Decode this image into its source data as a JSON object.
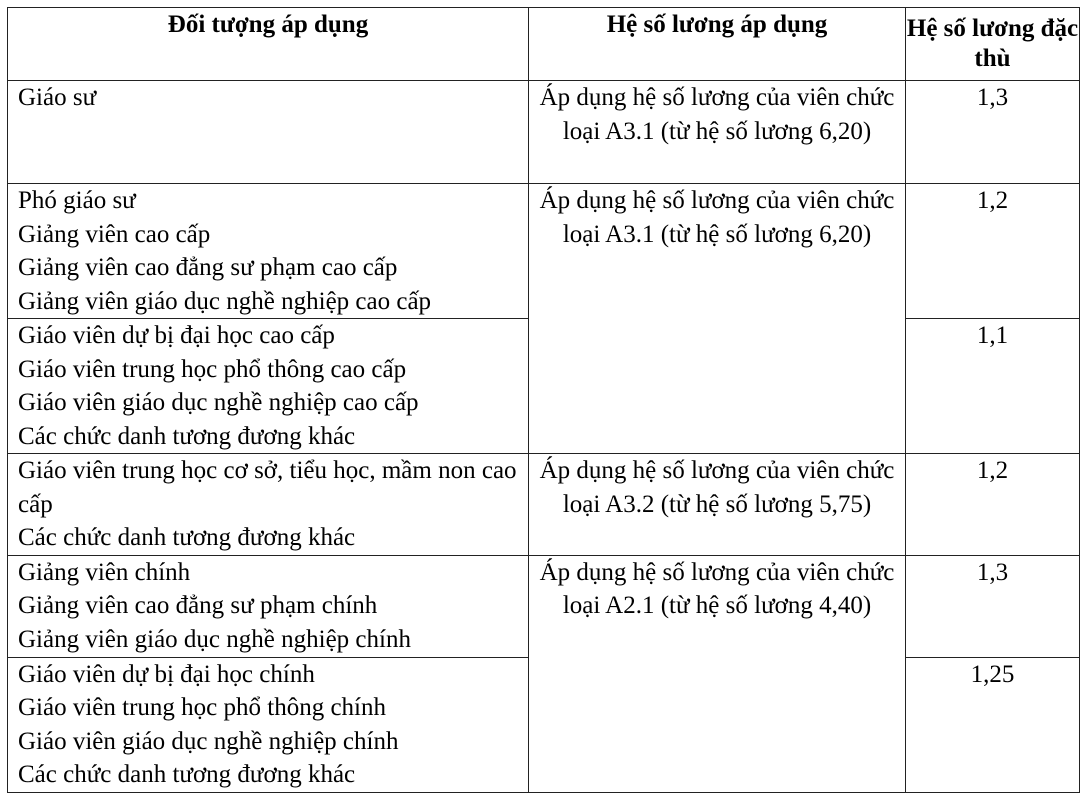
{
  "headers": [
    "Đối tượng áp dụng",
    "Hệ số lương áp dụng",
    "Hệ số lương đặc thù"
  ],
  "rows": [
    {
      "subjects": [
        "Giáo sư"
      ],
      "coef": "1,3",
      "applied": "Áp dụng hệ số lương của viên chức loại A3.1 (từ hệ số lương 6,20)"
    },
    {
      "subjects": [
        "Phó giáo sư",
        "Giảng viên cao cấp",
        "Giảng viên cao đẳng sư phạm cao cấp",
        "Giảng viên giáo dục nghề nghiệp cao cấp"
      ],
      "coef": "1,2",
      "applied": "Áp dụng hệ số lương của viên chức loại A3.1 (từ hệ số lương 6,20)"
    },
    {
      "subjects": [
        "Giáo viên dự bị đại học cao cấp",
        "Giáo viên trung học phổ thông cao cấp",
        "Giáo viên giáo dục nghề nghiệp cao cấp",
        "Các chức danh tương đương khác"
      ],
      "coef": "1,1"
    },
    {
      "subjects": [
        "Giáo viên trung học cơ sở, tiểu học, mầm non cao cấp",
        "Các chức danh tương đương khác"
      ],
      "coef": "1,2",
      "applied": "Áp dụng hệ số lương của viên chức loại A3.2 (từ hệ số lương 5,75)"
    },
    {
      "subjects": [
        "Giảng viên chính",
        "Giảng viên cao đẳng sư phạm chính",
        "Giảng viên giáo dục nghề nghiệp chính"
      ],
      "coef": "1,3",
      "applied": "Áp dụng hệ số lương của viên chức loại A2.1 (từ hệ số lương 4,40)"
    },
    {
      "subjects": [
        "Giáo viên dự bị đại học chính",
        "Giáo viên trung học phổ thông chính",
        "Giáo viên giáo dục nghề nghiệp chính",
        "Các chức danh tương đương khác"
      ],
      "coef": "1,25"
    }
  ]
}
